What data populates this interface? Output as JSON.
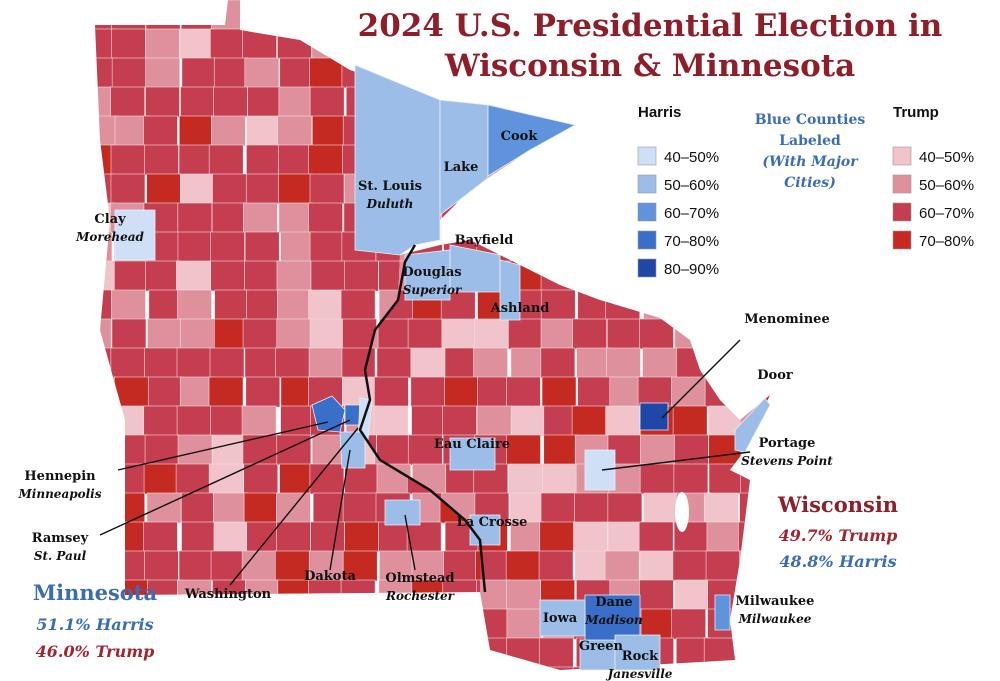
{
  "title": [
    "2024 U.S. Presidential Election in",
    "Wisconsin & Minnesota"
  ],
  "legend": {
    "harris": {
      "title": "Harris",
      "items": [
        {
          "label": "40–50%",
          "color": "#cfe0f6"
        },
        {
          "label": "50–60%",
          "color": "#9bbde8"
        },
        {
          "label": "60–70%",
          "color": "#5f93dc"
        },
        {
          "label": "70–80%",
          "color": "#3a6fc9"
        },
        {
          "label": "80–90%",
          "color": "#1f47a8"
        }
      ]
    },
    "note": [
      "Blue Counties",
      "Labeled",
      "(With Major",
      "Cities)"
    ],
    "trump": {
      "title": "Trump",
      "items": [
        {
          "label": "40–50%",
          "color": "#f1c3ca"
        },
        {
          "label": "50–60%",
          "color": "#de919d"
        },
        {
          "label": "60–70%",
          "color": "#c43e50"
        },
        {
          "label": "70–80%",
          "color": "#c52a22"
        }
      ]
    }
  },
  "counties": [
    {
      "name": "St. Louis",
      "city": "Duluth",
      "color": "#9bbde8"
    },
    {
      "name": "Lake",
      "color": "#9bbde8"
    },
    {
      "name": "Cook",
      "color": "#5f93dc"
    },
    {
      "name": "Clay",
      "city": "Morehead",
      "color": "#cfe0f6"
    },
    {
      "name": "Douglas",
      "city": "Superior",
      "color": "#9bbde8"
    },
    {
      "name": "Bayfield",
      "color": "#9bbde8"
    },
    {
      "name": "Ashland",
      "color": "#9bbde8"
    },
    {
      "name": "Hennepin",
      "city": "Minneapolis",
      "color": "#3a6fc9"
    },
    {
      "name": "Ramsey",
      "city": "St. Paul",
      "color": "#3a6fc9"
    },
    {
      "name": "Washington",
      "color": "#cfe0f6"
    },
    {
      "name": "Dakota",
      "color": "#9bbde8"
    },
    {
      "name": "Olmstead",
      "city": "Rochester",
      "color": "#9bbde8"
    },
    {
      "name": "Eau Claire",
      "color": "#9bbde8"
    },
    {
      "name": "La Crosse",
      "color": "#9bbde8"
    },
    {
      "name": "Portage",
      "city": "Stevens Point",
      "color": "#cfe0f6"
    },
    {
      "name": "Menominee",
      "color": "#1f47a8"
    },
    {
      "name": "Door",
      "color": "#9bbde8"
    },
    {
      "name": "Dane",
      "city": "Madison",
      "color": "#3a6fc9"
    },
    {
      "name": "Iowa",
      "color": "#9bbde8"
    },
    {
      "name": "Green",
      "color": "#9bbde8"
    },
    {
      "name": "Rock",
      "city": "Janesville",
      "color": "#9bbde8"
    },
    {
      "name": "Milwaukee",
      "city": "Milwaukee",
      "color": "#5f93dc"
    }
  ],
  "states": [
    {
      "name": "Minnesota",
      "results": [
        "51.1% Harris",
        "46.0% Trump"
      ]
    },
    {
      "name": "Wisconsin",
      "results": [
        "49.7% Trump",
        "48.8% Harris"
      ]
    }
  ]
}
